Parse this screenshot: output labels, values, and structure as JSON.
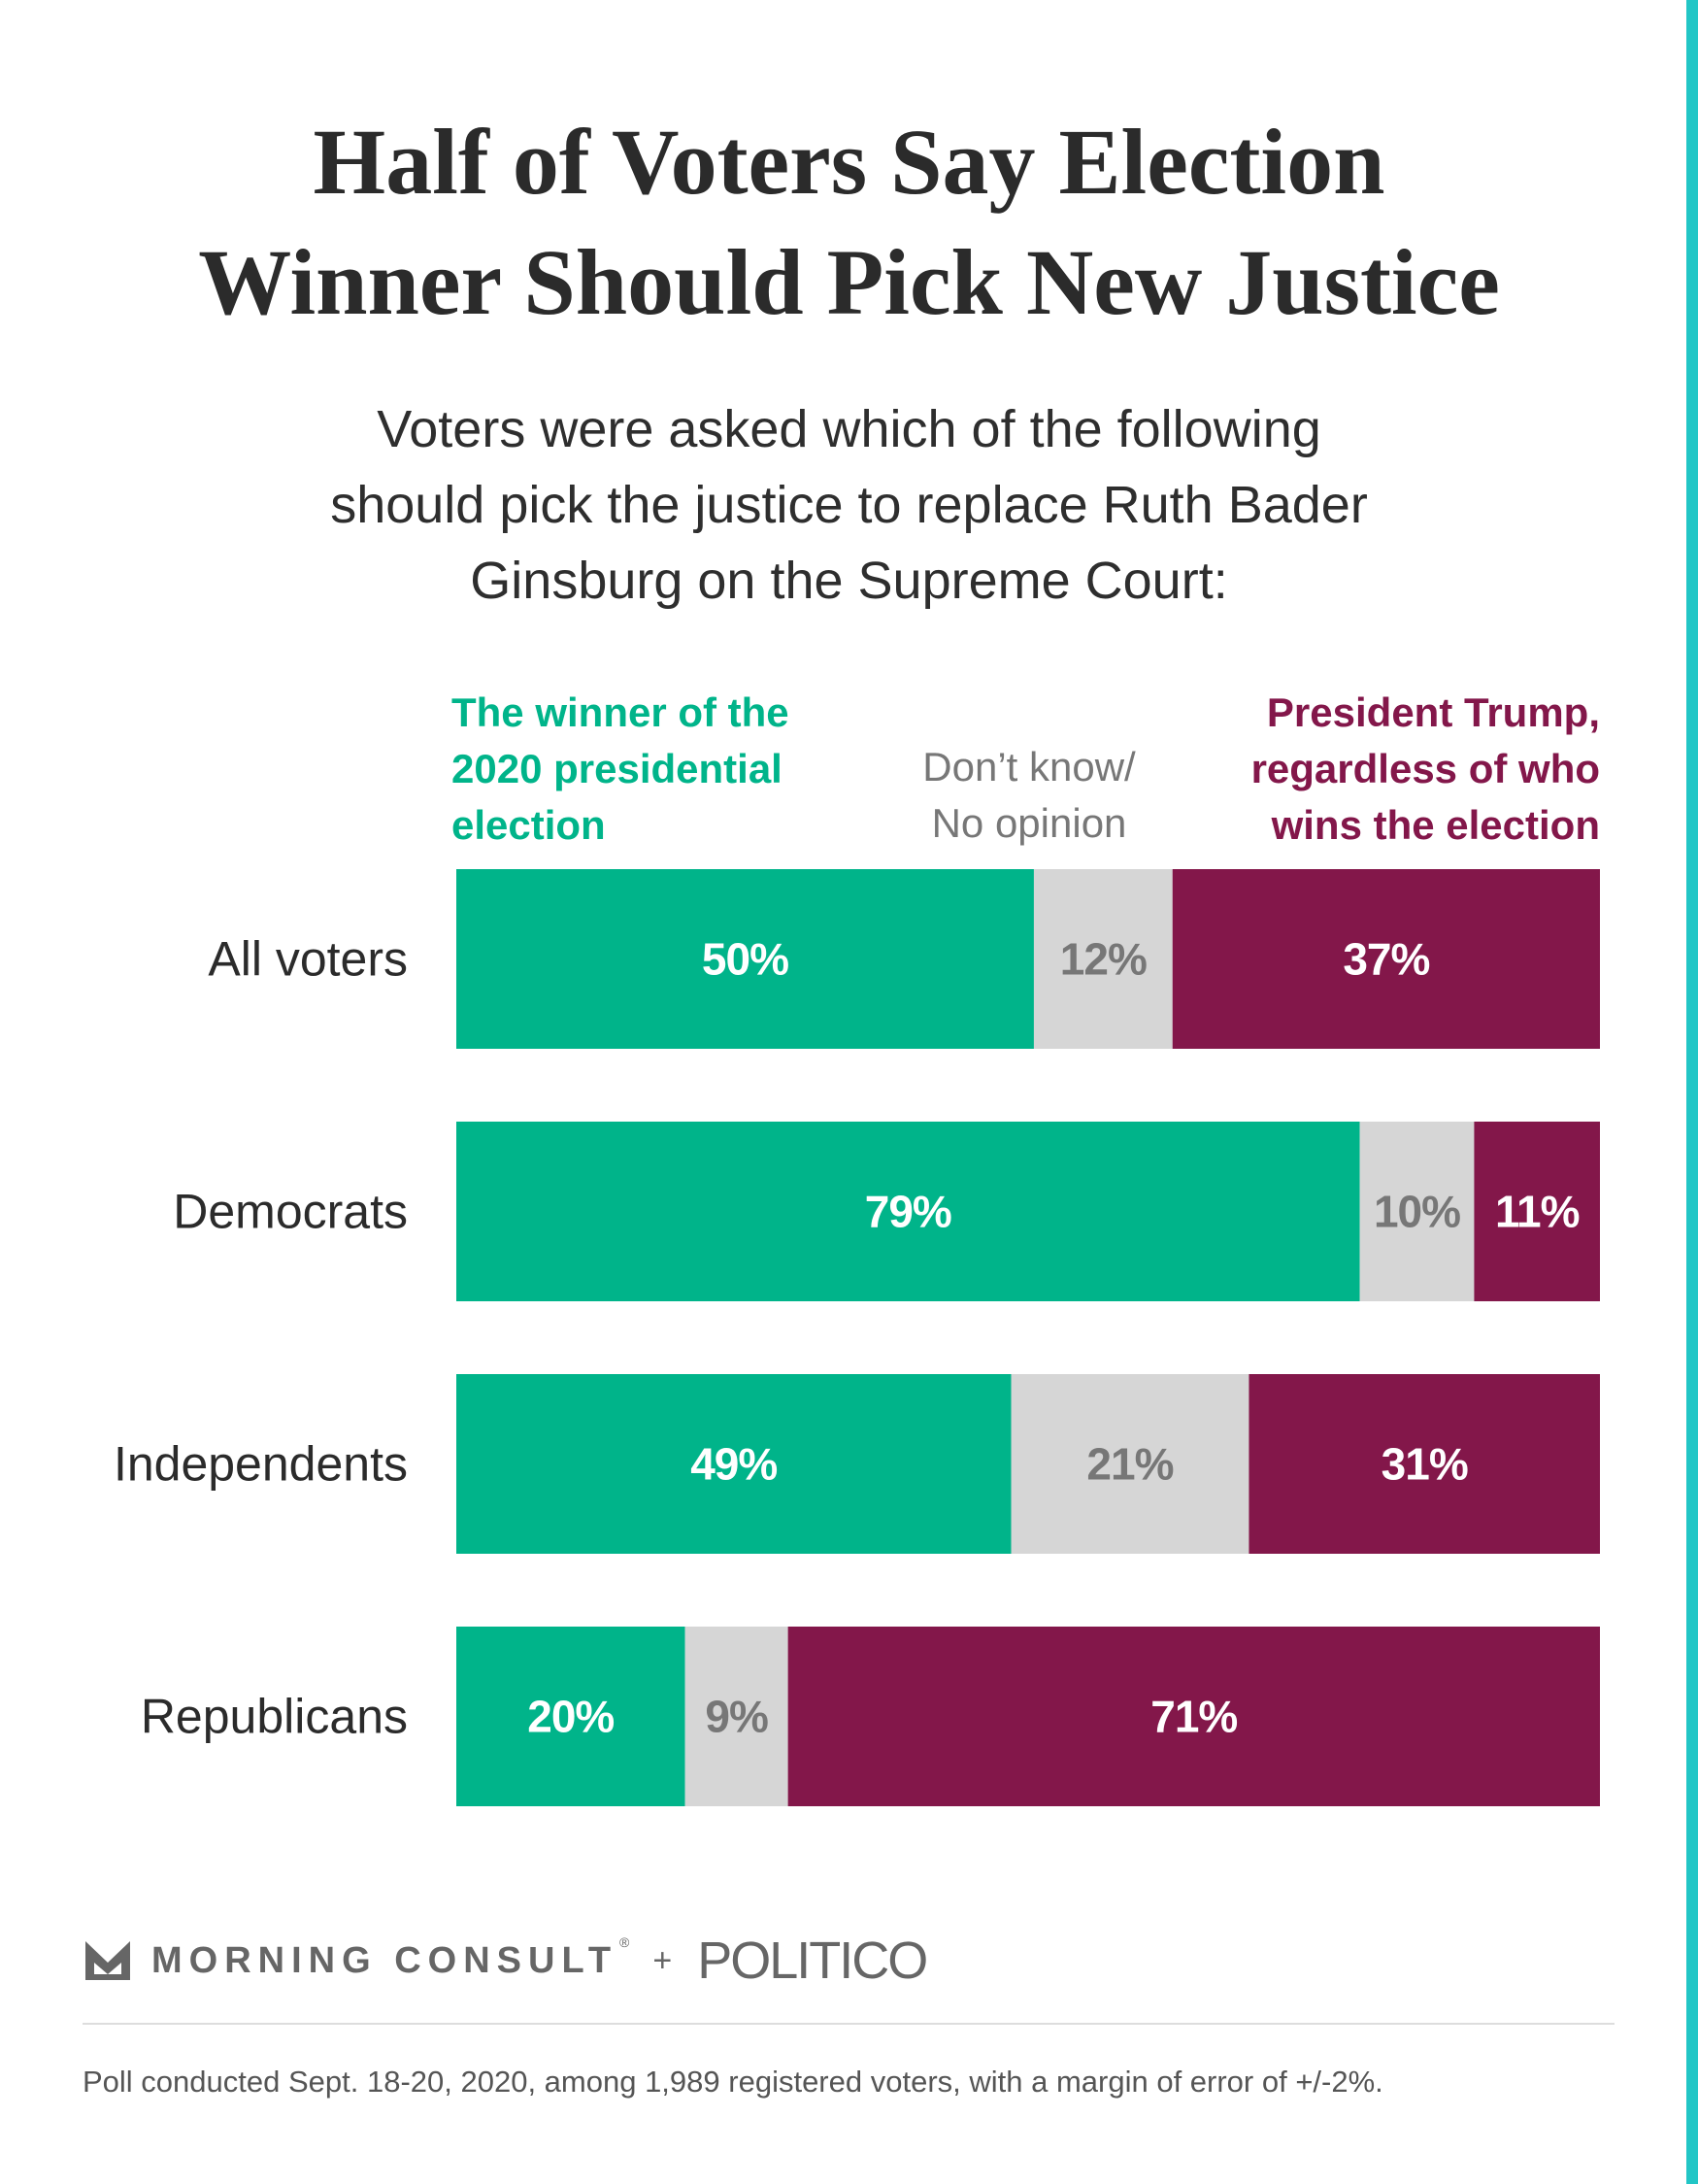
{
  "colors": {
    "winner": "#00b48a",
    "unsure": "#d6d6d6",
    "trump": "#83174a",
    "unsure_label": "#777777",
    "edge": "#22c6c6"
  },
  "chart_data": {
    "type": "bar",
    "orientation": "horizontal",
    "stacked": true,
    "title_lines": [
      "Half of Voters Say Election",
      "Winner Should Pick New Justice"
    ],
    "subtitle_lines": [
      "Voters were asked which of the following",
      "should pick the justice to replace Ruth Bader",
      "Ginsburg on the Supreme Court:"
    ],
    "legend_placement": "top",
    "legend": [
      {
        "key": "winner",
        "lines": [
          "The winner of the",
          "2020 presidential",
          "election"
        ]
      },
      {
        "key": "unsure",
        "lines": [
          "Don’t know/",
          "No opinion"
        ]
      },
      {
        "key": "trump",
        "lines": [
          "President Trump,",
          "regardless of who",
          "wins the election"
        ]
      }
    ],
    "categories": [
      "All voters",
      "Democrats",
      "Independents",
      "Republicans"
    ],
    "series": [
      {
        "key": "winner",
        "values": [
          50,
          79,
          49,
          20
        ]
      },
      {
        "key": "unsure",
        "values": [
          12,
          10,
          21,
          9
        ]
      },
      {
        "key": "trump",
        "values": [
          37,
          11,
          31,
          71
        ]
      }
    ],
    "value_suffix": "%",
    "grid": false
  },
  "brand": {
    "name": "MORNING CONSULT",
    "reg": "®",
    "plus": "+",
    "partner": "POLITICO"
  },
  "footnote": "Poll conducted Sept. 18-20, 2020, among 1,989 registered voters, with a margin of error of +/-2%."
}
